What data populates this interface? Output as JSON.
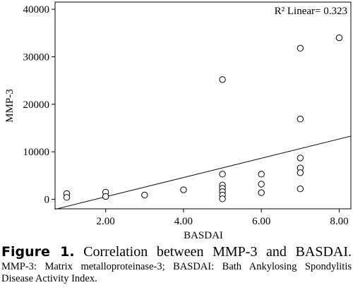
{
  "chart_data": {
    "type": "scatter",
    "title": "",
    "xlabel": "BASDAI",
    "ylabel": "MMP-3",
    "xlim": [
      0.7,
      8.3
    ],
    "ylim": [
      -2000,
      41500
    ],
    "x_ticks": [
      2,
      4,
      6,
      8
    ],
    "x_tick_labels": [
      "2.00",
      "4.00",
      "6.00",
      "8.00"
    ],
    "y_ticks": [
      0,
      10000,
      20000,
      30000,
      40000
    ],
    "y_tick_labels": [
      "0",
      "10000",
      "20000",
      "30000",
      "40000"
    ],
    "grid": false,
    "points": [
      {
        "x": 1,
        "y": 1200
      },
      {
        "x": 1,
        "y": 400
      },
      {
        "x": 2,
        "y": 1500
      },
      {
        "x": 2,
        "y": 600
      },
      {
        "x": 3,
        "y": 900
      },
      {
        "x": 4,
        "y": 2000
      },
      {
        "x": 5,
        "y": 25200
      },
      {
        "x": 5,
        "y": 5300
      },
      {
        "x": 5,
        "y": 3000
      },
      {
        "x": 5,
        "y": 2300
      },
      {
        "x": 5,
        "y": 1600
      },
      {
        "x": 5,
        "y": 900
      },
      {
        "x": 5,
        "y": 100
      },
      {
        "x": 6,
        "y": 5300
      },
      {
        "x": 6,
        "y": 3200
      },
      {
        "x": 6,
        "y": 1400
      },
      {
        "x": 7,
        "y": 31800
      },
      {
        "x": 7,
        "y": 16900
      },
      {
        "x": 7,
        "y": 8700
      },
      {
        "x": 7,
        "y": 6600
      },
      {
        "x": 7,
        "y": 5600
      },
      {
        "x": 7,
        "y": 2200
      },
      {
        "x": 8,
        "y": 34000
      }
    ],
    "fit_line": {
      "x": [
        0.7,
        8.3
      ],
      "y": [
        -2100,
        13300
      ]
    },
    "annotation": "R² Linear= 0.323"
  },
  "caption": {
    "label": "Figure 1.",
    "text": "Correlation between MMP-3 and BASDAI.",
    "note": "MMP-3: Matrix metalloproteinase-3; BASDAI: Bath Ankylosing Spondylitis Disease Activity Index."
  }
}
